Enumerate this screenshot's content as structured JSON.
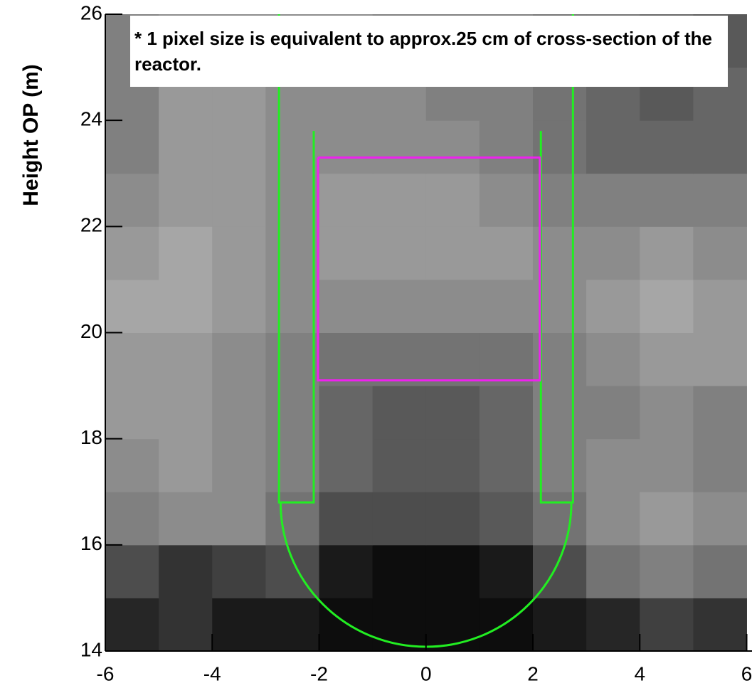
{
  "chart_data": {
    "type": "heatmap",
    "y_label": "Height OP (m)",
    "annotation": "* 1 pixel  size is equivalent to approx.25 cm of cross-section of the reactor.",
    "xlim": [
      -6,
      6.1
    ],
    "ylim": [
      14,
      26
    ],
    "xticks": [
      -6,
      -4,
      -2,
      0,
      2,
      4,
      6
    ],
    "yticks": [
      14,
      16,
      18,
      20,
      22,
      24,
      26
    ],
    "xbins": [
      -6,
      -5,
      -4,
      -3,
      -2,
      -1,
      0,
      1,
      2,
      3,
      4,
      5,
      6
    ],
    "ybins": [
      14,
      15,
      16,
      17,
      18,
      19,
      20,
      21,
      22,
      23,
      24,
      25,
      26
    ],
    "z": [
      [
        0.15,
        0.2,
        0.1,
        0.1,
        0.05,
        0.05,
        0.05,
        0.05,
        0.1,
        0.15,
        0.25,
        0.2
      ],
      [
        0.3,
        0.2,
        0.25,
        0.3,
        0.1,
        0.05,
        0.05,
        0.1,
        0.3,
        0.45,
        0.5,
        0.45
      ],
      [
        0.5,
        0.55,
        0.55,
        0.45,
        0.3,
        0.3,
        0.3,
        0.35,
        0.45,
        0.55,
        0.6,
        0.55
      ],
      [
        0.55,
        0.6,
        0.55,
        0.5,
        0.4,
        0.35,
        0.35,
        0.4,
        0.5,
        0.55,
        0.55,
        0.5
      ],
      [
        0.6,
        0.6,
        0.55,
        0.5,
        0.4,
        0.35,
        0.35,
        0.4,
        0.5,
        0.5,
        0.55,
        0.5
      ],
      [
        0.6,
        0.6,
        0.55,
        0.5,
        0.45,
        0.45,
        0.45,
        0.45,
        0.5,
        0.55,
        0.6,
        0.6
      ],
      [
        0.65,
        0.65,
        0.6,
        0.55,
        0.55,
        0.55,
        0.55,
        0.55,
        0.55,
        0.6,
        0.65,
        0.6
      ],
      [
        0.6,
        0.65,
        0.6,
        0.55,
        0.6,
        0.6,
        0.6,
        0.6,
        0.55,
        0.55,
        0.6,
        0.55
      ],
      [
        0.55,
        0.6,
        0.6,
        0.55,
        0.6,
        0.6,
        0.6,
        0.55,
        0.5,
        0.5,
        0.5,
        0.5
      ],
      [
        0.5,
        0.6,
        0.6,
        0.55,
        0.55,
        0.55,
        0.55,
        0.5,
        0.45,
        0.4,
        0.4,
        0.4
      ],
      [
        0.5,
        0.6,
        0.6,
        0.55,
        0.55,
        0.55,
        0.5,
        0.5,
        0.45,
        0.4,
        0.35,
        0.4
      ],
      [
        0.5,
        0.55,
        0.55,
        0.55,
        0.55,
        0.5,
        0.5,
        0.5,
        0.45,
        0.45,
        0.4,
        0.35
      ]
    ],
    "outlines": [
      {
        "color": "#22ee22",
        "x": [
          -2.75,
          -2.75,
          -2.1,
          -2.1
        ],
        "y": [
          26,
          16.8,
          16.8,
          23.8
        ]
      },
      {
        "color": "#22ee22",
        "x": [
          2.75,
          2.75,
          2.15,
          2.15
        ],
        "y": [
          26,
          16.8,
          16.8,
          23.8
        ]
      },
      {
        "color": "#ee22ee",
        "x": [
          -2.02,
          2.13,
          2.13,
          -2.02,
          -2.02
        ],
        "y": [
          23.3,
          23.3,
          19.1,
          19.1,
          23.3
        ]
      }
    ],
    "arc": {
      "color": "#22ee22",
      "cx": 0,
      "cy": 16.8,
      "r": 2.72
    }
  }
}
